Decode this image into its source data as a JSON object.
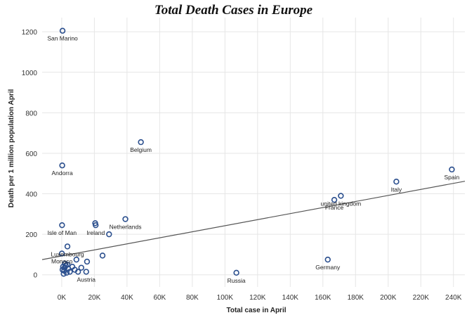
{
  "chart_data": {
    "type": "scatter",
    "title": "Total Death Cases in Europe",
    "xlabel": "Total case in April",
    "ylabel": "Death per 1 million population April",
    "xlim": [
      -12000,
      247000
    ],
    "ylim": [
      -60,
      1270
    ],
    "x_ticks": [
      {
        "value": 0,
        "label": "0K"
      },
      {
        "value": 20000,
        "label": "20K"
      },
      {
        "value": 40000,
        "label": "40K"
      },
      {
        "value": 60000,
        "label": "60K"
      },
      {
        "value": 80000,
        "label": "80K"
      },
      {
        "value": 100000,
        "label": "100K"
      },
      {
        "value": 120000,
        "label": "120K"
      },
      {
        "value": 140000,
        "label": "140K"
      },
      {
        "value": 160000,
        "label": "160K"
      },
      {
        "value": 180000,
        "label": "180K"
      },
      {
        "value": 200000,
        "label": "200K"
      },
      {
        "value": 220000,
        "label": "220K"
      },
      {
        "value": 240000,
        "label": "240K"
      }
    ],
    "y_ticks": [
      {
        "value": 0,
        "label": "0"
      },
      {
        "value": 200,
        "label": "200"
      },
      {
        "value": 400,
        "label": "400"
      },
      {
        "value": 600,
        "label": "600"
      },
      {
        "value": 800,
        "label": "800"
      },
      {
        "value": 1000,
        "label": "1000"
      },
      {
        "value": 1200,
        "label": "1200"
      }
    ],
    "grid": true,
    "marker_color": "#2b4f8e",
    "trendline_color": "#555555",
    "trendline": {
      "x": [
        -12000,
        247000
      ],
      "y": [
        75,
        462
      ]
    },
    "points": [
      {
        "x": 500,
        "y": 1205,
        "label": "San Marino"
      },
      {
        "x": 48500,
        "y": 655,
        "label": "Belgium"
      },
      {
        "x": 300,
        "y": 540,
        "label": "Andorra"
      },
      {
        "x": 239000,
        "y": 520,
        "label": "Spain"
      },
      {
        "x": 205000,
        "y": 460,
        "label": "Italy"
      },
      {
        "x": 171000,
        "y": 390,
        "label": "united kingdom"
      },
      {
        "x": 167000,
        "y": 370,
        "label": "France"
      },
      {
        "x": 39000,
        "y": 275,
        "label": "Netherlands"
      },
      {
        "x": 200,
        "y": 245,
        "label": "Isle of Man"
      },
      {
        "x": 20500,
        "y": 255,
        "label": ""
      },
      {
        "x": 20800,
        "y": 245,
        "label": "Ireland"
      },
      {
        "x": 29000,
        "y": 200,
        "label": ""
      },
      {
        "x": 3500,
        "y": 140,
        "label": "Luxembourg"
      },
      {
        "x": 100,
        "y": 105,
        "label": "Monaco"
      },
      {
        "x": 163000,
        "y": 75,
        "label": "Germany"
      },
      {
        "x": 107000,
        "y": 10,
        "label": "Russia"
      },
      {
        "x": 25000,
        "y": 95,
        "label": ""
      },
      {
        "x": 15500,
        "y": 65,
        "label": ""
      },
      {
        "x": 9000,
        "y": 75,
        "label": ""
      },
      {
        "x": 15000,
        "y": 15,
        "label": "Austria"
      },
      {
        "x": 12000,
        "y": 35,
        "label": ""
      },
      {
        "x": 8000,
        "y": 25,
        "label": ""
      },
      {
        "x": 10000,
        "y": 15,
        "label": ""
      },
      {
        "x": 6500,
        "y": 40,
        "label": ""
      },
      {
        "x": 4000,
        "y": 30,
        "label": ""
      },
      {
        "x": 2500,
        "y": 45,
        "label": ""
      },
      {
        "x": 1500,
        "y": 20,
        "label": ""
      },
      {
        "x": 800,
        "y": 40,
        "label": ""
      },
      {
        "x": 1200,
        "y": 5,
        "label": ""
      },
      {
        "x": 2000,
        "y": 55,
        "label": ""
      },
      {
        "x": 3000,
        "y": 10,
        "label": ""
      },
      {
        "x": 500,
        "y": 25,
        "label": ""
      },
      {
        "x": 5000,
        "y": 15,
        "label": ""
      },
      {
        "x": 1800,
        "y": 35,
        "label": ""
      },
      {
        "x": 3500,
        "y": 50,
        "label": ""
      }
    ]
  }
}
